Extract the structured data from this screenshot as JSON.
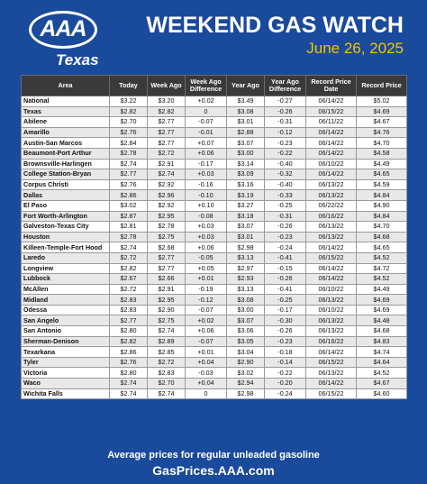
{
  "brand": {
    "logo_text": "AAA",
    "region": "Texas"
  },
  "header": {
    "title": "WEEKEND GAS WATCH",
    "date": "June 26, 2025"
  },
  "colors": {
    "background": "#1a4a9c",
    "date_accent": "#f5c400",
    "table_header": "#3a3a3a",
    "row_alt": "#e8e8e8"
  },
  "table": {
    "columns": [
      "Area",
      "Today",
      "Week Ago",
      "Week Ago Difference",
      "Year Ago",
      "Year Ago Difference",
      "Record Price Date",
      "Record Price"
    ],
    "rows": [
      [
        "National",
        "$3.22",
        "$3.20",
        "+0.02",
        "$3.49",
        "-0.27",
        "06/14/22",
        "$5.02"
      ],
      [
        "Texas",
        "$2.82",
        "$2.82",
        "0",
        "$3.08",
        "-0.26",
        "06/15/22",
        "$4.69"
      ],
      [
        "Abilene",
        "$2.70",
        "$2.77",
        "-0.07",
        "$3.01",
        "-0.31",
        "06/11/22",
        "$4.67"
      ],
      [
        "Amarillo",
        "$2.76",
        "$2.77",
        "-0.01",
        "$2.88",
        "-0.12",
        "06/14/22",
        "$4.76"
      ],
      [
        "Austin-San Marcos",
        "$2.84",
        "$2.77",
        "+0.07",
        "$3.07",
        "-0.23",
        "06/14/22",
        "$4.70"
      ],
      [
        "Beaumont-Port Arthur",
        "$2.78",
        "$2.72",
        "+0.06",
        "$3.00",
        "-0.22",
        "06/14/22",
        "$4.58"
      ],
      [
        "Brownsville-Harlingen",
        "$2.74",
        "$2.91",
        "-0.17",
        "$3.14",
        "-0.40",
        "06/10/22",
        "$4.49"
      ],
      [
        "College Station-Bryan",
        "$2.77",
        "$2.74",
        "+0.03",
        "$3.09",
        "-0.32",
        "06/14/22",
        "$4.65"
      ],
      [
        "Corpus Christi",
        "$2.76",
        "$2.92",
        "-0.16",
        "$3.16",
        "-0.40",
        "06/13/22",
        "$4.59"
      ],
      [
        "Dallas",
        "$2.86",
        "$2.96",
        "-0.10",
        "$3.19",
        "-0.33",
        "06/13/22",
        "$4.84"
      ],
      [
        "El Paso",
        "$3.02",
        "$2.92",
        "+0.10",
        "$3.27",
        "-0.25",
        "06/22/22",
        "$4.90"
      ],
      [
        "Fort Worth-Arlington",
        "$2.87",
        "$2.95",
        "-0.08",
        "$3.18",
        "-0.31",
        "06/16/22",
        "$4.84"
      ],
      [
        "Galveston-Texas City",
        "$2.81",
        "$2.78",
        "+0.03",
        "$3.07",
        "-0.26",
        "06/13/22",
        "$4.70"
      ],
      [
        "Houston",
        "$2.78",
        "$2.75",
        "+0.03",
        "$3.01",
        "-0.23",
        "06/13/22",
        "$4.68"
      ],
      [
        "Killeen-Temple-Fort Hood",
        "$2.74",
        "$2.68",
        "+0.06",
        "$2.98",
        "-0.24",
        "06/14/22",
        "$4.65"
      ],
      [
        "Laredo",
        "$2.72",
        "$2.77",
        "-0.05",
        "$3.13",
        "-0.41",
        "06/15/22",
        "$4.52"
      ],
      [
        "Longview",
        "$2.82",
        "$2.77",
        "+0.05",
        "$2.97",
        "-0.15",
        "06/14/22",
        "$4.72"
      ],
      [
        "Lubbock",
        "$2.67",
        "$2.66",
        "+0.01",
        "$2.93",
        "-0.26",
        "06/14/22",
        "$4.52"
      ],
      [
        "McAllen",
        "$2.72",
        "$2.91",
        "-0.19",
        "$3.13",
        "-0.41",
        "06/10/22",
        "$4.49"
      ],
      [
        "Midland",
        "$2.83",
        "$2.95",
        "-0.12",
        "$3.08",
        "-0.25",
        "06/13/22",
        "$4.69"
      ],
      [
        "Odessa",
        "$2.83",
        "$2.90",
        "-0.07",
        "$3.00",
        "-0.17",
        "06/10/22",
        "$4.69"
      ],
      [
        "San Angelo",
        "$2.77",
        "$2.75",
        "+0.02",
        "$3.07",
        "-0.30",
        "06/13/22",
        "$4.48"
      ],
      [
        "San Antonio",
        "$2.80",
        "$2.74",
        "+0.06",
        "$3.06",
        "-0.26",
        "06/13/22",
        "$4.68"
      ],
      [
        "Sherman-Denison",
        "$2.82",
        "$2.89",
        "-0.07",
        "$3.05",
        "-0.23",
        "06/16/22",
        "$4.83"
      ],
      [
        "Texarkana",
        "$2.86",
        "$2.85",
        "+0.01",
        "$3.04",
        "-0.18",
        "06/14/22",
        "$4.74"
      ],
      [
        "Tyler",
        "$2.76",
        "$2.72",
        "+0.04",
        "$2.90",
        "-0.14",
        "06/15/22",
        "$4.64"
      ],
      [
        "Victoria",
        "$2.80",
        "$2.83",
        "-0.03",
        "$3.02",
        "-0.22",
        "06/13/22",
        "$4.52"
      ],
      [
        "Waco",
        "$2.74",
        "$2.70",
        "+0.04",
        "$2.94",
        "-0.20",
        "06/14/22",
        "$4.67"
      ],
      [
        "Wichita Falls",
        "$2.74",
        "$2.74",
        "0",
        "$2.98",
        "-0.24",
        "06/15/22",
        "$4.60"
      ]
    ]
  },
  "footer": {
    "line1": "Average prices for regular unleaded gasoline",
    "line2": "GasPrices.AAA.com"
  }
}
